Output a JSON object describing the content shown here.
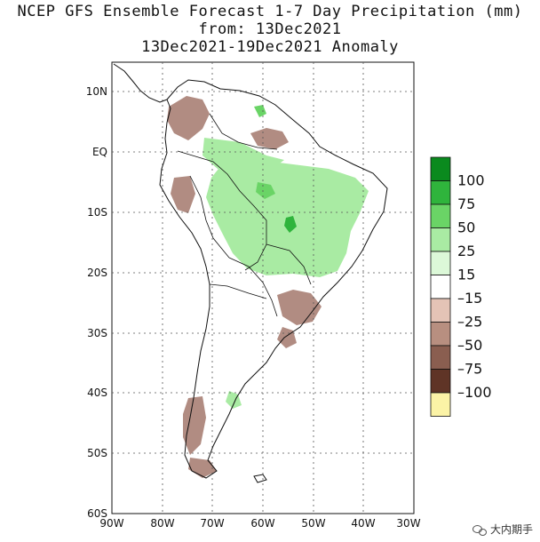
{
  "title": {
    "line1": "NCEP GFS Ensemble Forecast 1-7 Day Precipitation (mm)",
    "line2": "from: 13Dec2021",
    "line3": "13Dec2021-19Dec2021 Anomaly"
  },
  "map": {
    "lat_labels": [
      "10N",
      "EQ",
      "10S",
      "20S",
      "30S",
      "40S",
      "50S",
      "60S"
    ],
    "lon_labels": [
      "90W",
      "80W",
      "70W",
      "60W",
      "50W",
      "40W",
      "30W"
    ],
    "lat_range": [
      -60,
      15
    ],
    "lon_range": [
      -90,
      -30
    ]
  },
  "legend": {
    "labels": [
      "100",
      "75",
      "50",
      "25",
      "15",
      "–15",
      "–25",
      "–50",
      "–75",
      "–100"
    ],
    "colors": [
      "#0a8a1e",
      "#2fb43c",
      "#6ad466",
      "#a9eba3",
      "#dcf8d8",
      "#ffffff",
      "#e4c3b6",
      "#b88f80",
      "#8a5e50",
      "#5f3426",
      "#fbf3a6"
    ]
  },
  "colors": {
    "dry": "#b18c82",
    "wet": "#9ee69a",
    "wet_strong": "#2fb43c"
  },
  "watermark": {
    "text": "大内期手",
    "icon": "wechat-icon"
  }
}
